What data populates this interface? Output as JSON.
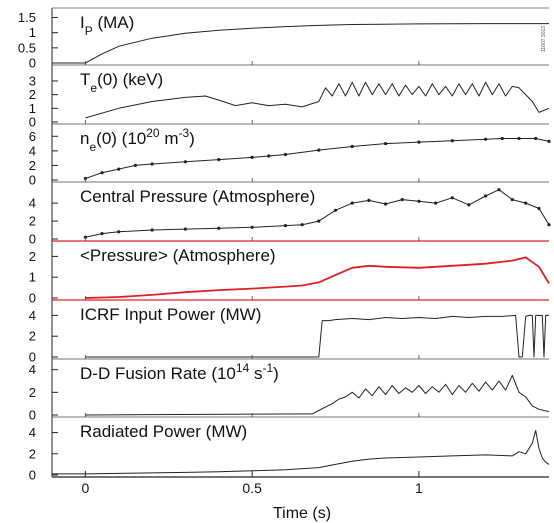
{
  "chart_data": {
    "type": "line",
    "layout": "stacked panels sharing one time axis",
    "xlabel": "Time (s)",
    "xlim": [
      -0.1,
      1.39
    ],
    "x_ticks": [
      {
        "v": 0,
        "label": "0"
      },
      {
        "v": 0.5,
        "label": "0.5"
      },
      {
        "v": 1,
        "label": "1"
      }
    ],
    "figure_code": "11607 3013",
    "panels": [
      {
        "title_parts": [
          {
            "t": "I"
          },
          {
            "t": "P",
            "sub": true
          },
          {
            "t": " (MA)"
          }
        ],
        "color": "#222222",
        "ylim": [
          0,
          1.65
        ],
        "ticks": [
          {
            "v": 0,
            "label": "0"
          },
          {
            "v": 0.5,
            "label": "0.5"
          },
          {
            "v": 1,
            "label": "1"
          },
          {
            "v": 1.5,
            "label": "1.5"
          }
        ],
        "x": [
          -0.1,
          0,
          0.02,
          0.05,
          0.1,
          0.2,
          0.3,
          0.4,
          0.5,
          0.6,
          0.7,
          0.8,
          1.0,
          1.2,
          1.3,
          1.36,
          1.39
        ],
        "y": [
          0,
          0,
          0.12,
          0.3,
          0.55,
          0.82,
          0.98,
          1.08,
          1.15,
          1.2,
          1.24,
          1.27,
          1.29,
          1.3,
          1.3,
          1.3,
          1.3
        ]
      },
      {
        "title_parts": [
          {
            "t": "T"
          },
          {
            "t": "e",
            "sub": true
          },
          {
            "t": "(0) (keV)"
          }
        ],
        "color": "#222222",
        "ylim": [
          0,
          3.8
        ],
        "ticks": [
          {
            "v": 0,
            "label": "0"
          },
          {
            "v": 1,
            "label": "1"
          },
          {
            "v": 2,
            "label": "2"
          },
          {
            "v": 3,
            "label": "3"
          }
        ],
        "x": [
          0.0,
          0.1,
          0.2,
          0.3,
          0.36,
          0.4,
          0.45,
          0.5,
          0.55,
          0.6,
          0.65,
          0.7,
          0.72,
          0.74,
          0.76,
          0.78,
          0.8,
          0.82,
          0.84,
          0.86,
          0.88,
          0.9,
          0.92,
          0.94,
          0.96,
          0.98,
          1.0,
          1.02,
          1.04,
          1.06,
          1.08,
          1.1,
          1.12,
          1.14,
          1.16,
          1.18,
          1.2,
          1.22,
          1.24,
          1.26,
          1.28,
          1.3,
          1.32,
          1.34,
          1.36,
          1.39
        ],
        "y": [
          0.3,
          1.0,
          1.5,
          1.8,
          1.9,
          1.6,
          1.2,
          1.4,
          1.2,
          1.3,
          1.1,
          1.5,
          2.5,
          1.9,
          2.8,
          1.9,
          2.9,
          1.9,
          2.9,
          2.0,
          2.8,
          2.0,
          2.8,
          1.9,
          2.7,
          2.0,
          2.6,
          1.9,
          2.8,
          2.0,
          2.6,
          1.9,
          2.8,
          2.0,
          2.8,
          1.9,
          2.9,
          2.0,
          2.8,
          1.9,
          2.6,
          2.5,
          2.0,
          1.5,
          0.7,
          1.0
        ]
      },
      {
        "title_parts": [
          {
            "t": "n"
          },
          {
            "t": "e",
            "sub": true
          },
          {
            "t": "(0) (10"
          },
          {
            "t": "20",
            "sup": true
          },
          {
            "t": " m"
          },
          {
            "t": "-3",
            "sup": true
          },
          {
            "t": ")"
          }
        ],
        "color": "#222222",
        "ylim": [
          0,
          7
        ],
        "ticks": [
          {
            "v": 0,
            "label": "0"
          },
          {
            "v": 2,
            "label": "2"
          },
          {
            "v": 4,
            "label": "4"
          },
          {
            "v": 6,
            "label": "6"
          }
        ],
        "x": [
          0.0,
          0.05,
          0.1,
          0.15,
          0.2,
          0.3,
          0.4,
          0.5,
          0.55,
          0.6,
          0.7,
          0.8,
          0.9,
          1.0,
          1.1,
          1.2,
          1.25,
          1.3,
          1.35,
          1.39
        ],
        "y": [
          0.2,
          1.0,
          1.5,
          2.0,
          2.2,
          2.5,
          2.8,
          3.1,
          3.3,
          3.5,
          4.1,
          4.6,
          5.0,
          5.2,
          5.4,
          5.6,
          5.7,
          5.7,
          5.7,
          5.3
        ]
      },
      {
        "title_parts": [
          {
            "t": "Central Pressure (Atmosphere)"
          }
        ],
        "color": "#222222",
        "ylim": [
          0,
          5.8
        ],
        "ticks": [
          {
            "v": 0,
            "label": "0"
          },
          {
            "v": 2,
            "label": "2"
          },
          {
            "v": 4,
            "label": "4"
          }
        ],
        "x": [
          0.0,
          0.05,
          0.1,
          0.2,
          0.3,
          0.4,
          0.5,
          0.6,
          0.65,
          0.7,
          0.75,
          0.8,
          0.85,
          0.9,
          0.95,
          1.0,
          1.05,
          1.1,
          1.15,
          1.2,
          1.24,
          1.28,
          1.32,
          1.36,
          1.39
        ],
        "y": [
          0.2,
          0.6,
          0.8,
          1.0,
          1.1,
          1.2,
          1.3,
          1.5,
          1.6,
          2.0,
          3.2,
          4.0,
          4.3,
          3.9,
          4.4,
          4.2,
          4.0,
          4.6,
          3.8,
          4.8,
          5.5,
          4.4,
          4.0,
          3.4,
          1.6
        ]
      },
      {
        "title_parts": [
          {
            "t": "<Pressure> (Atmosphere)"
          }
        ],
        "color": "#e31e24",
        "ylim": [
          0,
          2.5
        ],
        "ticks": [
          {
            "v": 0,
            "label": "0"
          },
          {
            "v": 1,
            "label": "1"
          },
          {
            "v": 2,
            "label": "2"
          }
        ],
        "x": [
          0.0,
          0.1,
          0.2,
          0.3,
          0.4,
          0.5,
          0.6,
          0.65,
          0.7,
          0.75,
          0.8,
          0.85,
          0.9,
          1.0,
          1.1,
          1.2,
          1.28,
          1.32,
          1.36,
          1.39
        ],
        "y": [
          0.0,
          0.05,
          0.15,
          0.28,
          0.38,
          0.45,
          0.55,
          0.6,
          0.75,
          1.1,
          1.45,
          1.55,
          1.5,
          1.45,
          1.55,
          1.65,
          1.8,
          1.95,
          1.5,
          0.7
        ]
      },
      {
        "title_parts": [
          {
            "t": "ICRF Input Power (MW)"
          }
        ],
        "color": "#222222",
        "ylim": [
          0,
          5
        ],
        "ticks": [
          {
            "v": 0,
            "label": "0"
          },
          {
            "v": 2,
            "label": "2"
          },
          {
            "v": 4,
            "label": "4"
          }
        ],
        "x": [
          0.0,
          0.69,
          0.7,
          0.71,
          0.73,
          0.75,
          0.8,
          0.85,
          0.9,
          0.95,
          1.0,
          1.05,
          1.1,
          1.15,
          1.2,
          1.25,
          1.29,
          1.3,
          1.31,
          1.32,
          1.33,
          1.34,
          1.345,
          1.35,
          1.36,
          1.37,
          1.375,
          1.38,
          1.39
        ],
        "y": [
          0,
          0,
          0,
          3.5,
          3.5,
          3.6,
          3.7,
          3.6,
          3.8,
          3.7,
          3.8,
          3.7,
          3.9,
          3.8,
          3.9,
          3.9,
          4.0,
          0,
          0,
          3.9,
          4.0,
          4.0,
          0,
          4.0,
          4.0,
          4.0,
          0,
          4.0,
          4.0
        ]
      },
      {
        "title_parts": [
          {
            "t": "D-D Fusion Rate (10"
          },
          {
            "t": "14",
            "sup": true
          },
          {
            "t": " s"
          },
          {
            "t": "-1",
            "sup": true
          },
          {
            "t": ")"
          }
        ],
        "color": "#222222",
        "ylim": [
          0,
          4.5
        ],
        "ticks": [
          {
            "v": 0,
            "label": "0"
          },
          {
            "v": 2,
            "label": "2"
          },
          {
            "v": 4,
            "label": "4"
          }
        ],
        "x": [
          0.0,
          0.68,
          0.7,
          0.72,
          0.74,
          0.76,
          0.78,
          0.8,
          0.82,
          0.84,
          0.86,
          0.88,
          0.9,
          0.92,
          0.94,
          0.96,
          0.98,
          1.0,
          1.02,
          1.04,
          1.06,
          1.08,
          1.1,
          1.12,
          1.14,
          1.16,
          1.18,
          1.2,
          1.22,
          1.24,
          1.26,
          1.28,
          1.3,
          1.32,
          1.34,
          1.36,
          1.39
        ],
        "y": [
          0,
          0.1,
          0.4,
          0.7,
          1.0,
          1.4,
          1.6,
          2.0,
          1.5,
          2.3,
          1.7,
          2.5,
          1.8,
          2.6,
          1.9,
          2.4,
          2.0,
          2.6,
          1.9,
          2.5,
          2.0,
          2.7,
          1.8,
          2.6,
          2.0,
          2.8,
          2.1,
          2.9,
          2.2,
          3.0,
          2.2,
          3.5,
          2.0,
          1.6,
          0.8,
          0.5,
          0.3
        ]
      },
      {
        "title_parts": [
          {
            "t": "Radiated Power (MW)"
          }
        ],
        "color": "#222222",
        "ylim": [
          0,
          5
        ],
        "ticks": [
          {
            "v": 0,
            "label": "0"
          },
          {
            "v": 2,
            "label": "2"
          },
          {
            "v": 4,
            "label": "4"
          }
        ],
        "x": [
          -0.1,
          0,
          0.1,
          0.2,
          0.3,
          0.4,
          0.5,
          0.6,
          0.7,
          0.75,
          0.8,
          0.85,
          0.9,
          1.0,
          1.1,
          1.2,
          1.28,
          1.3,
          1.32,
          1.34,
          1.35,
          1.36,
          1.37,
          1.38,
          1.39
        ],
        "y": [
          0.1,
          0.1,
          0.15,
          0.2,
          0.25,
          0.3,
          0.4,
          0.5,
          0.7,
          1.0,
          1.3,
          1.5,
          1.6,
          1.7,
          1.8,
          1.9,
          1.8,
          2.2,
          2.0,
          3.0,
          4.2,
          2.5,
          1.6,
          1.2,
          1.0
        ]
      }
    ]
  }
}
